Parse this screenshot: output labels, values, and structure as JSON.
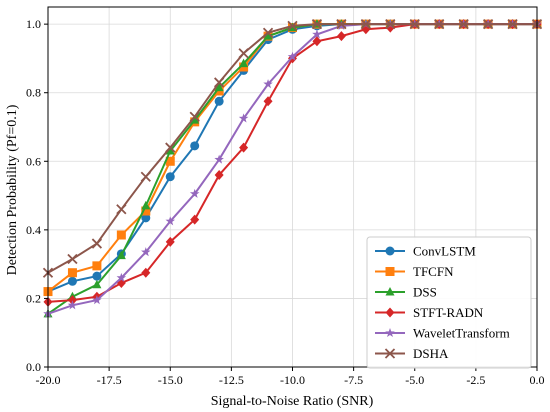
{
  "chart_data": {
    "type": "line",
    "title": "",
    "xlabel": "Signal-to-Noise Ratio (SNR)",
    "ylabel": "Detection Probability (Pf=0.1)",
    "xlim": [
      -20,
      0
    ],
    "ylim": [
      0,
      1.05
    ],
    "xticks": [
      -20,
      -17.5,
      -15,
      -12.5,
      -10,
      -7.5,
      -5,
      -2.5,
      0
    ],
    "xtick_labels": [
      "-20.0",
      "-17.5",
      "-15.0",
      "-12.5",
      "-10.0",
      "-7.5",
      "-5.0",
      "-2.5",
      "0.0"
    ],
    "yticks": [
      0,
      0.2,
      0.4,
      0.6,
      0.8,
      1.0
    ],
    "ytick_labels": [
      "0.0",
      "0.2",
      "0.4",
      "0.6",
      "0.8",
      "1.0"
    ],
    "grid": true,
    "legend_position": "lower-right",
    "x": [
      -20,
      -19,
      -18,
      -17,
      -16,
      -15,
      -14,
      -13,
      -12,
      -11,
      -10,
      -9,
      -8,
      -7,
      -6,
      -5,
      -4,
      -3,
      -2,
      -1,
      0
    ],
    "series": [
      {
        "name": "ConvLSTM",
        "color": "#1f77b4",
        "marker": "circle",
        "values": [
          0.22,
          0.25,
          0.265,
          0.33,
          0.435,
          0.555,
          0.645,
          0.775,
          0.865,
          0.955,
          0.985,
          0.995,
          1.0,
          1.0,
          1.0,
          1.0,
          1.0,
          1.0,
          1.0,
          1.0,
          1.0
        ]
      },
      {
        "name": "TFCFN",
        "color": "#ff7f0e",
        "marker": "square",
        "values": [
          0.22,
          0.275,
          0.295,
          0.385,
          0.455,
          0.6,
          0.715,
          0.805,
          0.875,
          0.965,
          0.99,
          1.0,
          1.0,
          1.0,
          1.0,
          1.0,
          1.0,
          1.0,
          1.0,
          1.0,
          1.0
        ]
      },
      {
        "name": "DSS",
        "color": "#2ca02c",
        "marker": "triangle",
        "values": [
          0.155,
          0.205,
          0.24,
          0.325,
          0.47,
          0.63,
          0.72,
          0.815,
          0.885,
          0.965,
          0.99,
          1.0,
          1.0,
          1.0,
          1.0,
          1.0,
          1.0,
          1.0,
          1.0,
          1.0,
          1.0
        ]
      },
      {
        "name": "STFT-RADN",
        "color": "#d62728",
        "marker": "diamond",
        "values": [
          0.19,
          0.195,
          0.205,
          0.245,
          0.275,
          0.365,
          0.43,
          0.56,
          0.64,
          0.775,
          0.9,
          0.95,
          0.965,
          0.985,
          0.99,
          1.0,
          1.0,
          1.0,
          1.0,
          1.0,
          1.0
        ]
      },
      {
        "name": "WaveletTransform",
        "color": "#9467bd",
        "marker": "star",
        "values": [
          0.155,
          0.18,
          0.195,
          0.26,
          0.335,
          0.425,
          0.505,
          0.605,
          0.725,
          0.825,
          0.905,
          0.97,
          0.995,
          1.0,
          1.0,
          1.0,
          1.0,
          1.0,
          1.0,
          1.0,
          1.0
        ]
      },
      {
        "name": "DSHA",
        "color": "#8c564b",
        "marker": "x",
        "values": [
          0.275,
          0.315,
          0.36,
          0.46,
          0.555,
          0.64,
          0.73,
          0.83,
          0.915,
          0.975,
          0.995,
          1.0,
          1.0,
          1.0,
          1.0,
          1.0,
          1.0,
          1.0,
          1.0,
          1.0,
          1.0
        ]
      }
    ]
  }
}
